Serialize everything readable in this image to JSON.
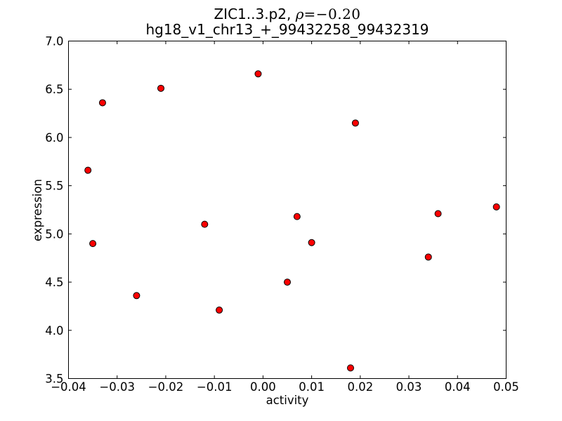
{
  "chart_data": {
    "type": "scatter",
    "title": "ZIC1..3.p2, ρ=−0.20",
    "title_prefix": "ZIC1..3.p2, ",
    "rho_symbol": "ρ",
    "rho_eq": "=−0.20",
    "subtitle": "hg18_v1_chr13_+_99432258_99432319",
    "xlabel": "activity",
    "ylabel": "expression",
    "xlim": [
      -0.04,
      0.05
    ],
    "ylim": [
      3.5,
      7.0
    ],
    "xticks": [
      -0.04,
      -0.03,
      -0.02,
      -0.01,
      0.0,
      0.01,
      0.02,
      0.03,
      0.04,
      0.05
    ],
    "yticks": [
      3.5,
      4.0,
      4.5,
      5.0,
      5.5,
      6.0,
      6.5,
      7.0
    ],
    "xtick_labels": [
      "−0.04",
      "−0.03",
      "−0.02",
      "−0.01",
      "0.00",
      "0.01",
      "0.02",
      "0.03",
      "0.04",
      "0.05"
    ],
    "ytick_labels": [
      "3.5",
      "4.0",
      "4.5",
      "5.0",
      "5.5",
      "6.0",
      "6.5",
      "7.0"
    ],
    "grid": false,
    "legend": null,
    "marker": {
      "shape": "circle",
      "fill": "#ff0000",
      "edge": "#000000",
      "radius": 4.5
    },
    "series": [
      {
        "name": "points",
        "points": [
          {
            "activity": -0.036,
            "expression": 5.66
          },
          {
            "activity": -0.035,
            "expression": 4.9
          },
          {
            "activity": -0.033,
            "expression": 6.36
          },
          {
            "activity": -0.026,
            "expression": 4.36
          },
          {
            "activity": -0.021,
            "expression": 6.51
          },
          {
            "activity": -0.012,
            "expression": 5.1
          },
          {
            "activity": -0.009,
            "expression": 4.21
          },
          {
            "activity": -0.001,
            "expression": 6.66
          },
          {
            "activity": 0.005,
            "expression": 4.5
          },
          {
            "activity": 0.007,
            "expression": 5.18
          },
          {
            "activity": 0.01,
            "expression": 4.91
          },
          {
            "activity": 0.018,
            "expression": 3.61
          },
          {
            "activity": 0.019,
            "expression": 6.15
          },
          {
            "activity": 0.034,
            "expression": 4.76
          },
          {
            "activity": 0.036,
            "expression": 5.21
          },
          {
            "activity": 0.048,
            "expression": 5.28
          }
        ]
      }
    ]
  },
  "colors": {
    "background": "#ffffff",
    "frame": "#000000",
    "marker_fill": "#ff0000",
    "marker_edge": "#000000"
  }
}
